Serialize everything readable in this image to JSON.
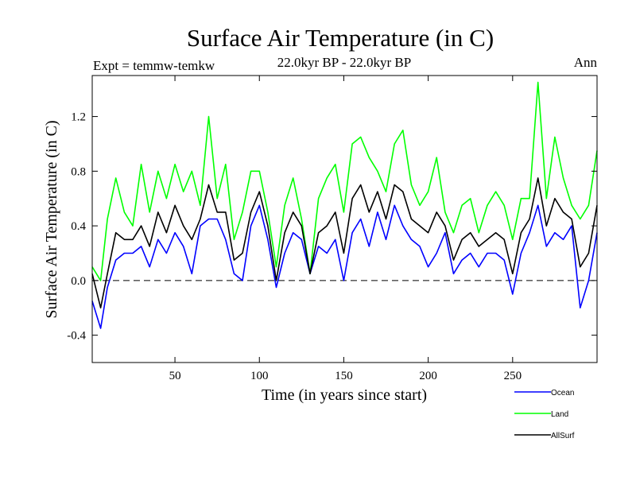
{
  "chart_data": {
    "type": "line",
    "title": "Surface Air Temperature (in C)",
    "subtitle_left": "Expt = temmw-temkw",
    "subtitle_center": "22.0kyr BP - 22.0kyr BP",
    "subtitle_right": "Ann",
    "xlabel": "Time (in years since start)",
    "ylabel": "Surface Air Temperature (in C)",
    "xlim": [
      1,
      300
    ],
    "ylim": [
      -0.6,
      1.5
    ],
    "xticks": [
      50,
      100,
      150,
      200,
      250
    ],
    "xtick_labels": [
      "50",
      "100",
      "150",
      "200",
      "250"
    ],
    "yticks": [
      -0.4,
      0.0,
      0.4,
      0.8,
      1.2
    ],
    "ytick_labels": [
      "-0.4",
      "0.0",
      "0.4",
      "0.8",
      "1.2"
    ],
    "reference_line": 0.0,
    "series": [
      {
        "name": "Ocean",
        "color": "#0000ff",
        "x": [
          1,
          6,
          10,
          15,
          20,
          25,
          30,
          35,
          40,
          45,
          50,
          55,
          60,
          65,
          70,
          75,
          80,
          85,
          90,
          95,
          100,
          105,
          110,
          115,
          120,
          125,
          130,
          135,
          140,
          145,
          150,
          155,
          160,
          165,
          170,
          175,
          180,
          185,
          190,
          195,
          200,
          205,
          210,
          215,
          220,
          225,
          230,
          235,
          240,
          245,
          250,
          255,
          260,
          265,
          270,
          275,
          280,
          285,
          290,
          295,
          300
        ],
        "values": [
          -0.15,
          -0.35,
          -0.05,
          0.15,
          0.2,
          0.2,
          0.25,
          0.1,
          0.3,
          0.2,
          0.35,
          0.25,
          0.05,
          0.4,
          0.45,
          0.45,
          0.3,
          0.05,
          0.0,
          0.4,
          0.55,
          0.3,
          -0.05,
          0.2,
          0.35,
          0.3,
          0.05,
          0.25,
          0.2,
          0.3,
          0.0,
          0.35,
          0.45,
          0.25,
          0.5,
          0.3,
          0.55,
          0.4,
          0.3,
          0.25,
          0.1,
          0.2,
          0.35,
          0.05,
          0.15,
          0.2,
          0.1,
          0.2,
          0.2,
          0.15,
          -0.1,
          0.2,
          0.35,
          0.55,
          0.25,
          0.35,
          0.3,
          0.4,
          -0.2,
          0.0,
          0.35
        ]
      },
      {
        "name": "Land",
        "color": "#00ff00",
        "x": [
          1,
          6,
          10,
          15,
          20,
          25,
          30,
          35,
          40,
          45,
          50,
          55,
          60,
          65,
          70,
          75,
          80,
          85,
          90,
          95,
          100,
          105,
          110,
          115,
          120,
          125,
          130,
          135,
          140,
          145,
          150,
          155,
          160,
          165,
          170,
          175,
          180,
          185,
          190,
          195,
          200,
          205,
          210,
          215,
          220,
          225,
          230,
          235,
          240,
          245,
          250,
          255,
          260,
          265,
          270,
          275,
          280,
          285,
          290,
          295,
          300
        ],
        "values": [
          0.1,
          0.0,
          0.45,
          0.75,
          0.5,
          0.4,
          0.85,
          0.5,
          0.8,
          0.6,
          0.85,
          0.65,
          0.8,
          0.55,
          1.2,
          0.6,
          0.85,
          0.3,
          0.5,
          0.8,
          0.8,
          0.5,
          0.1,
          0.55,
          0.75,
          0.45,
          0.05,
          0.6,
          0.75,
          0.85,
          0.5,
          1.0,
          1.05,
          0.9,
          0.8,
          0.65,
          1.0,
          1.1,
          0.7,
          0.55,
          0.65,
          0.9,
          0.5,
          0.35,
          0.55,
          0.6,
          0.35,
          0.55,
          0.65,
          0.55,
          0.3,
          0.6,
          0.6,
          1.45,
          0.6,
          1.05,
          0.75,
          0.55,
          0.45,
          0.55,
          0.95
        ]
      },
      {
        "name": "AllSurf",
        "color": "#000000",
        "x": [
          1,
          6,
          10,
          15,
          20,
          25,
          30,
          35,
          40,
          45,
          50,
          55,
          60,
          65,
          70,
          75,
          80,
          85,
          90,
          95,
          100,
          105,
          110,
          115,
          120,
          125,
          130,
          135,
          140,
          145,
          150,
          155,
          160,
          165,
          170,
          175,
          180,
          185,
          190,
          195,
          200,
          205,
          210,
          215,
          220,
          225,
          230,
          235,
          240,
          245,
          250,
          255,
          260,
          265,
          270,
          275,
          280,
          285,
          290,
          295,
          300
        ],
        "values": [
          0.05,
          -0.2,
          0.05,
          0.35,
          0.3,
          0.3,
          0.4,
          0.25,
          0.5,
          0.35,
          0.55,
          0.4,
          0.3,
          0.45,
          0.7,
          0.5,
          0.5,
          0.15,
          0.2,
          0.5,
          0.65,
          0.4,
          0.0,
          0.35,
          0.5,
          0.4,
          0.05,
          0.35,
          0.4,
          0.5,
          0.2,
          0.6,
          0.7,
          0.5,
          0.65,
          0.45,
          0.7,
          0.65,
          0.45,
          0.4,
          0.35,
          0.5,
          0.4,
          0.15,
          0.3,
          0.35,
          0.25,
          0.3,
          0.35,
          0.3,
          0.05,
          0.35,
          0.45,
          0.75,
          0.4,
          0.6,
          0.5,
          0.45,
          0.1,
          0.2,
          0.55
        ]
      }
    ],
    "legend": [
      {
        "label": "Ocean",
        "color": "#0000ff"
      },
      {
        "label": "Land",
        "color": "#00ff00"
      },
      {
        "label": "AllSurf",
        "color": "#000000"
      }
    ],
    "legend_position": "bottom-right"
  }
}
